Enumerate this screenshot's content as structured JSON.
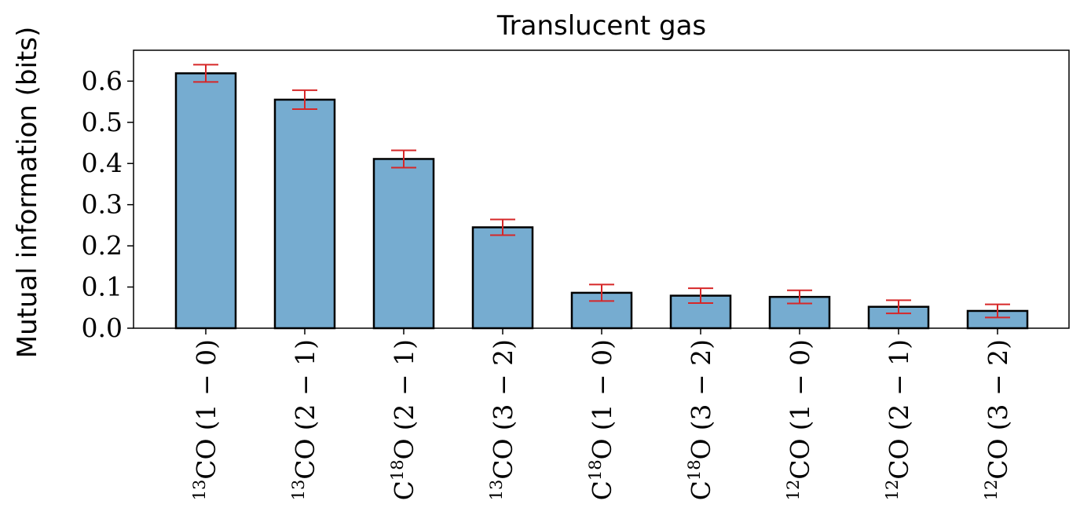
{
  "chart_data": {
    "type": "bar",
    "title": "Translucent gas",
    "xlabel": "",
    "ylabel": "Mutual information (bits)",
    "ylim": [
      0.0,
      0.675
    ],
    "yticks": [
      0.0,
      0.1,
      0.2,
      0.3,
      0.4,
      0.5,
      0.6
    ],
    "ytick_labels": [
      "0.0",
      "0.1",
      "0.2",
      "0.3",
      "0.4",
      "0.5",
      "0.6"
    ],
    "categories": [
      {
        "pre": "",
        "sup": "13",
        "post": "CO",
        "trans": "(1 − 0)"
      },
      {
        "pre": "",
        "sup": "13",
        "post": "CO",
        "trans": "(2 − 1)"
      },
      {
        "pre": "C",
        "sup": "18",
        "post": "O",
        "trans": "(2 − 1)"
      },
      {
        "pre": "",
        "sup": "13",
        "post": "CO",
        "trans": "(3 − 2)"
      },
      {
        "pre": "C",
        "sup": "18",
        "post": "O",
        "trans": "(1 − 0)"
      },
      {
        "pre": "C",
        "sup": "18",
        "post": "O",
        "trans": "(3 − 2)"
      },
      {
        "pre": "",
        "sup": "12",
        "post": "CO",
        "trans": "(1 − 0)"
      },
      {
        "pre": "",
        "sup": "12",
        "post": "CO",
        "trans": "(2 − 1)"
      },
      {
        "pre": "",
        "sup": "12",
        "post": "CO",
        "trans": "(3 − 2)"
      }
    ],
    "values": [
      0.619,
      0.555,
      0.411,
      0.245,
      0.086,
      0.079,
      0.076,
      0.052,
      0.042
    ],
    "errors": [
      0.021,
      0.023,
      0.021,
      0.019,
      0.02,
      0.018,
      0.016,
      0.016,
      0.016
    ],
    "grid": false,
    "colors": {
      "bar_fill": "#76acd0",
      "bar_edge": "#000000",
      "error_bar": "#d62728"
    }
  }
}
